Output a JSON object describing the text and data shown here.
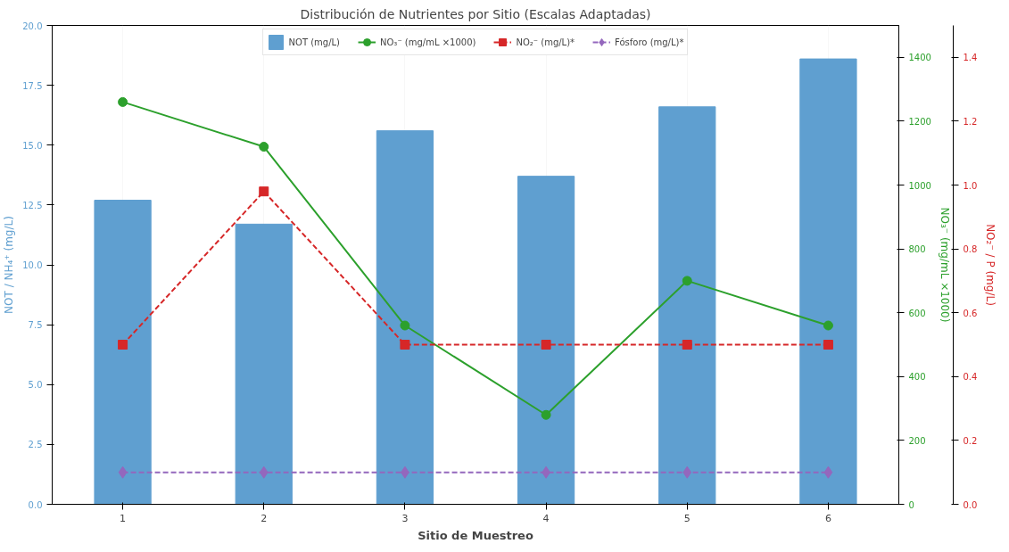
{
  "chart_data": {
    "type": "bar",
    "title": "Distribución de Nutrientes por Sitio (Escalas Adaptadas)",
    "xlabel": "Sitio de Muestreo",
    "ylabel": "NOT / NH₄⁺ (mg/L)",
    "y2label": "NO₃⁻ (mg/mL ×1000)",
    "y3label": "NO₂⁻ / P (mg/L)",
    "x": [
      1,
      2,
      3,
      4,
      5,
      6
    ],
    "xlim": [
      0.5,
      6.5
    ],
    "xticks": [
      1,
      2,
      3,
      4,
      5,
      6
    ],
    "ylim": [
      0,
      20
    ],
    "yticks": [
      {
        "value": 0,
        "label": "0.0"
      },
      {
        "value": 2.5,
        "label": "2.5"
      },
      {
        "value": 5,
        "label": "5.0"
      },
      {
        "value": 7.5,
        "label": "7.5"
      },
      {
        "value": 10,
        "label": "10.0"
      },
      {
        "value": 12.5,
        "label": "12.5"
      },
      {
        "value": 15,
        "label": "15.0"
      },
      {
        "value": 17.5,
        "label": "17.5"
      },
      {
        "value": 20,
        "label": "20.0"
      }
    ],
    "y2lim": [
      0,
      1500
    ],
    "y2ticks": [
      0,
      200,
      400,
      600,
      800,
      1000,
      1200,
      1400
    ],
    "y3lim": [
      0,
      1.5
    ],
    "y3ticks": [
      {
        "value": 0,
        "label": "0.0"
      },
      {
        "value": 0.2,
        "label": "0.2"
      },
      {
        "value": 0.4,
        "label": "0.4"
      },
      {
        "value": 0.6,
        "label": "0.6"
      },
      {
        "value": 0.8,
        "label": "0.8"
      },
      {
        "value": 1,
        "label": "1.0"
      },
      {
        "value": 1.2,
        "label": "1.2"
      },
      {
        "value": 1.4,
        "label": "1.4"
      }
    ],
    "grid": "x",
    "legend": "top",
    "series": [
      {
        "name": "NOT (mg/L)",
        "color": "#5f9fd0",
        "values": [
          12.7,
          11.7,
          15.6,
          13.7,
          16.6,
          18.6
        ]
      },
      {
        "name": "NO₃⁻ (mg/mL ×1000)",
        "type": "line",
        "axis": "y2",
        "color": "#2ca02c",
        "marker": "circle",
        "line_style": "solid",
        "values": [
          1260,
          1120,
          560,
          280,
          700,
          560
        ]
      },
      {
        "name": "NO₂⁻ (mg/L)*",
        "type": "line",
        "axis": "y3",
        "color": "#d62728",
        "marker": "square",
        "line_style": "dashed",
        "values": [
          0.5,
          0.98,
          0.5,
          0.5,
          0.5,
          0.5
        ]
      },
      {
        "name": "Fósforo (mg/L)*",
        "type": "line",
        "axis": "y3",
        "color": "#9467bd",
        "marker": "diamond",
        "line_style": "dashed",
        "values": [
          0.1,
          0.1,
          0.1,
          0.1,
          0.1,
          0.1
        ]
      }
    ]
  }
}
